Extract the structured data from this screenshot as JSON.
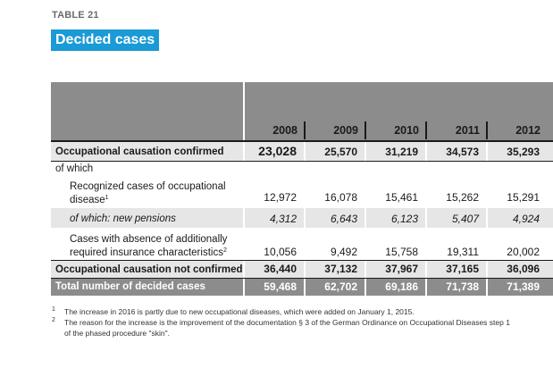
{
  "table_label": "TABLE 21",
  "title": "Decided cases",
  "years": [
    "2008",
    "2009",
    "2010",
    "2011",
    "2012"
  ],
  "rows": [
    {
      "label": "Occupational causation confirmed",
      "values": [
        "23,028",
        "25,570",
        "31,219",
        "34,573",
        "35,293"
      ]
    },
    {
      "label": "of which"
    },
    {
      "label_line1": "Recognized cases of occupational",
      "label_line2": "disease",
      "sup": "1",
      "values": [
        "12,972",
        "16,078",
        "15,461",
        "15,262",
        "15,291"
      ]
    },
    {
      "label": "of which: new pensions",
      "values": [
        "4,312",
        "6,643",
        "6,123",
        "5,407",
        "4,924"
      ]
    },
    {
      "label_line1": "Cases with absence of additionally",
      "label_line2": "required insurance characteristics",
      "sup": "2",
      "values": [
        "10,056",
        "9,492",
        "15,758",
        "19,311",
        "20,002"
      ]
    },
    {
      "label": "Occupational causation not confirmed",
      "values": [
        "36,440",
        "37,132",
        "37,967",
        "37,165",
        "36,096"
      ]
    },
    {
      "label": "Total number of decided cases",
      "values": [
        "59,468",
        "62,702",
        "69,186",
        "71,738",
        "71,389"
      ]
    }
  ],
  "footnotes": [
    {
      "mark": "1",
      "text": "The increase in 2016 is partly due to new occupational diseases, which were added on January 1, 2015."
    },
    {
      "mark": "2",
      "line1": "The reason for the increase is the improvement of the documentation § 3 of the German Ordinance on Occupational Diseases step 1",
      "line2": "of the phased procedure \"skin\"."
    }
  ]
}
